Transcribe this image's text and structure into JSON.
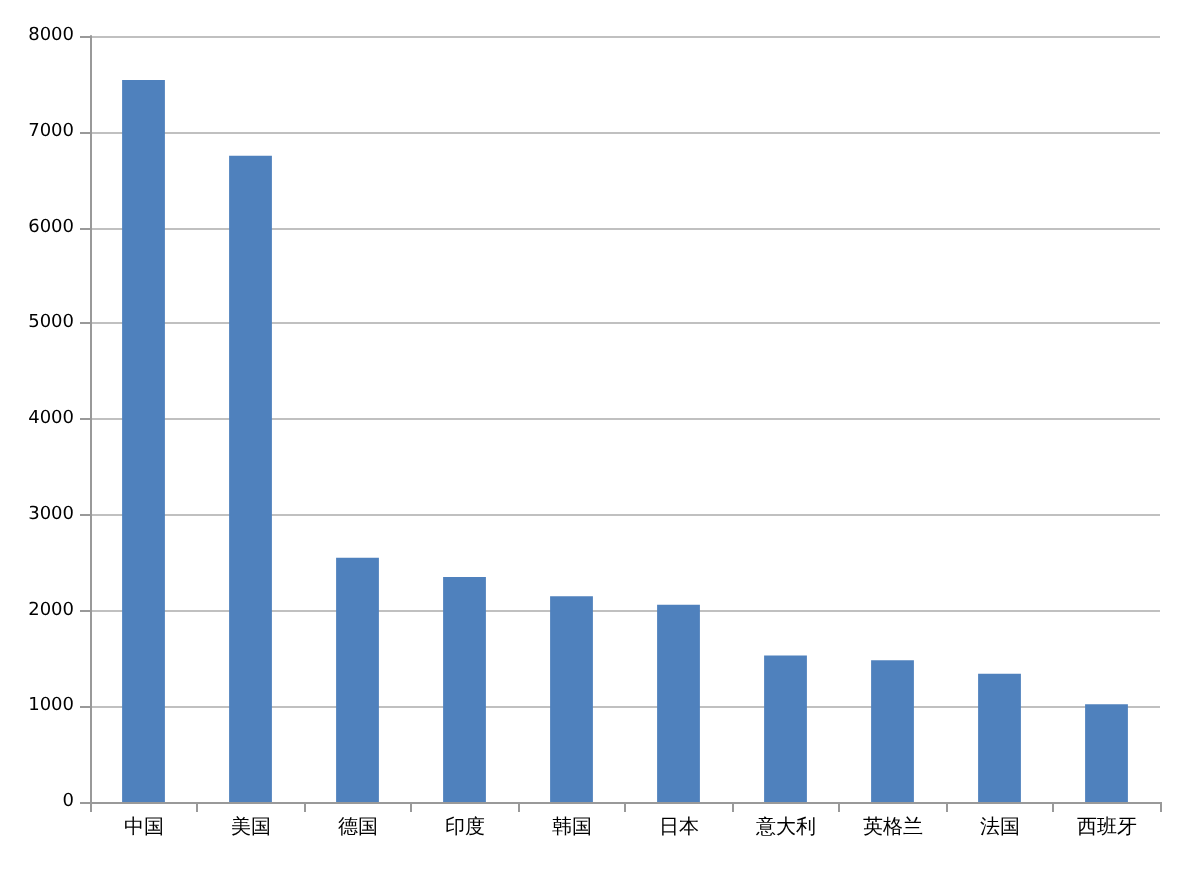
{
  "chart_data": {
    "type": "bar",
    "categories": [
      "中国",
      "美国",
      "德国",
      "印度",
      "韩国",
      "日本",
      "意大利",
      "英格兰",
      "法国",
      "西班牙"
    ],
    "values": [
      7540,
      6750,
      2550,
      2350,
      2150,
      2060,
      1530,
      1480,
      1340,
      1020
    ],
    "color": "#4f81bd",
    "ylim": [
      0,
      8000
    ],
    "yticks": [
      0,
      1000,
      2000,
      3000,
      4000,
      5000,
      6000,
      7000,
      8000
    ],
    "grid": "y"
  }
}
